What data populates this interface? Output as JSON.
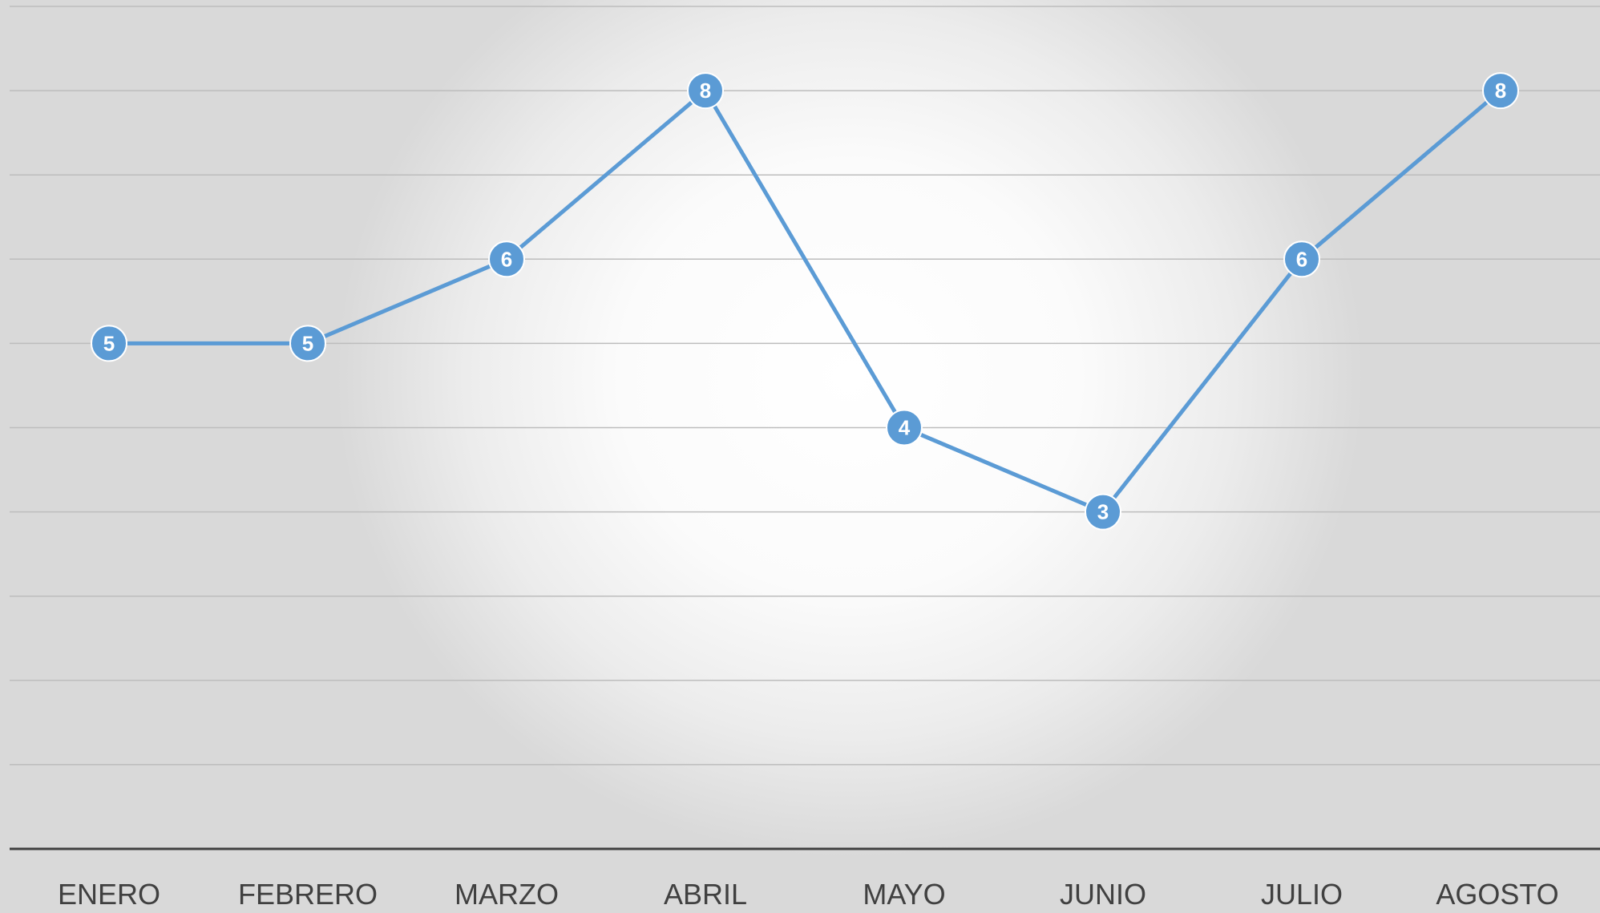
{
  "chart_data": {
    "type": "line",
    "categories": [
      "ENERO",
      "FEBRERO",
      "MARZO",
      "ABRIL",
      "MAYO",
      "JUNIO",
      "JULIO",
      "AGOSTO"
    ],
    "series": [
      {
        "values": [
          5,
          5,
          6,
          8,
          4,
          3,
          6,
          8
        ]
      }
    ],
    "title": "",
    "xlabel": "",
    "ylabel": "",
    "ylim": [
      -1,
      9
    ],
    "ytick_step": 1,
    "grid": true,
    "legend": "none",
    "data_labels": true,
    "colors": {
      "series": "#5b9bd5",
      "gridline": "#bdbdbd",
      "axis": "#404040",
      "tick_text": "#404040",
      "label_text": "#ffffff"
    }
  }
}
